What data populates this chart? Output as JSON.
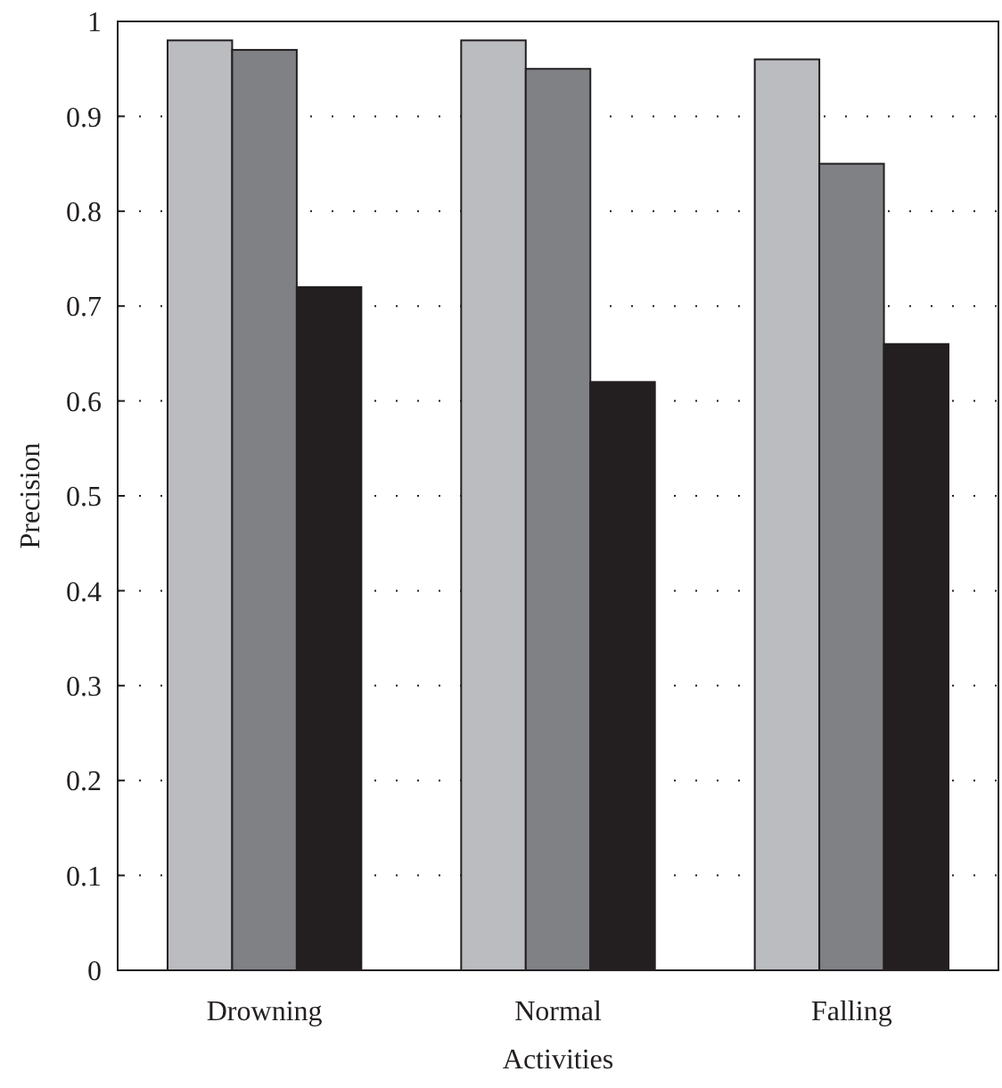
{
  "chart_data": {
    "type": "bar",
    "xlabel": "Activities",
    "ylabel": "Precision",
    "categories": [
      "Drowning",
      "Normal",
      "Falling"
    ],
    "series": [
      {
        "color": "#bbbcc0",
        "values": [
          0.98,
          0.98,
          0.96
        ]
      },
      {
        "color": "#808185",
        "values": [
          0.97,
          0.95,
          0.85
        ]
      },
      {
        "color": "#231f20",
        "values": [
          0.72,
          0.62,
          0.66
        ]
      }
    ],
    "ylim": [
      0,
      1
    ],
    "yticks": [
      0,
      0.1,
      0.2,
      0.3,
      0.4,
      0.5,
      0.6,
      0.7,
      0.8,
      0.9,
      1
    ],
    "grid": "y"
  }
}
